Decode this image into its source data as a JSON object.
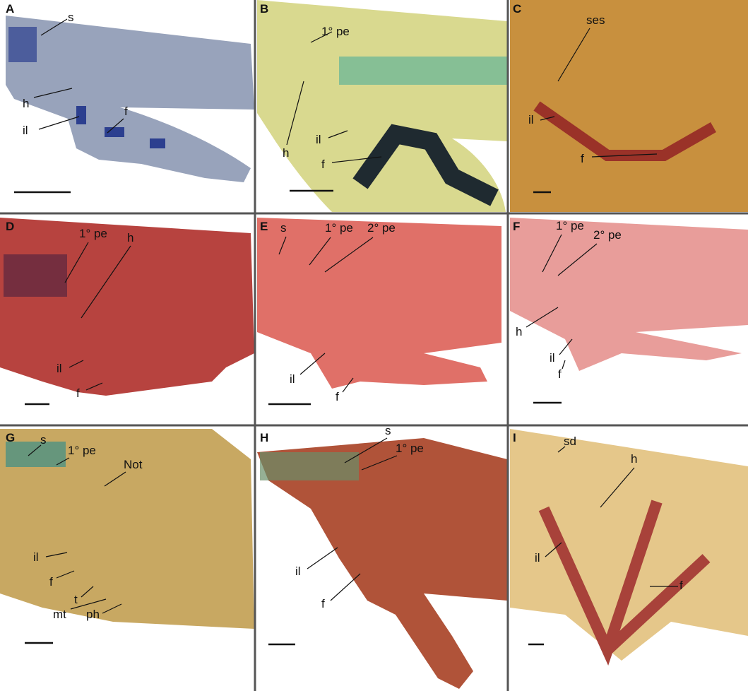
{
  "panels": [
    {
      "letter": "A",
      "labels": [
        "s",
        "h",
        "il",
        "f"
      ]
    },
    {
      "letter": "B",
      "labels": [
        "1° pe",
        "h",
        "il",
        "f"
      ]
    },
    {
      "letter": "C",
      "labels": [
        "ses",
        "il",
        "f"
      ]
    },
    {
      "letter": "D",
      "labels": [
        "1° pe",
        "h",
        "il",
        "f"
      ]
    },
    {
      "letter": "E",
      "labels": [
        "s",
        "1° pe",
        "2° pe",
        "il",
        "f"
      ]
    },
    {
      "letter": "F",
      "labels": [
        "1° pe",
        "2° pe",
        "h",
        "il",
        "f"
      ]
    },
    {
      "letter": "G",
      "labels": [
        "s",
        "1° pe",
        "Not",
        "il",
        "f",
        "t",
        "mt",
        "ph"
      ]
    },
    {
      "letter": "H",
      "labels": [
        "s",
        "1° pe",
        "il",
        "f"
      ]
    },
    {
      "letter": "I",
      "labels": [
        "sd",
        "h",
        "il",
        "f"
      ]
    }
  ]
}
